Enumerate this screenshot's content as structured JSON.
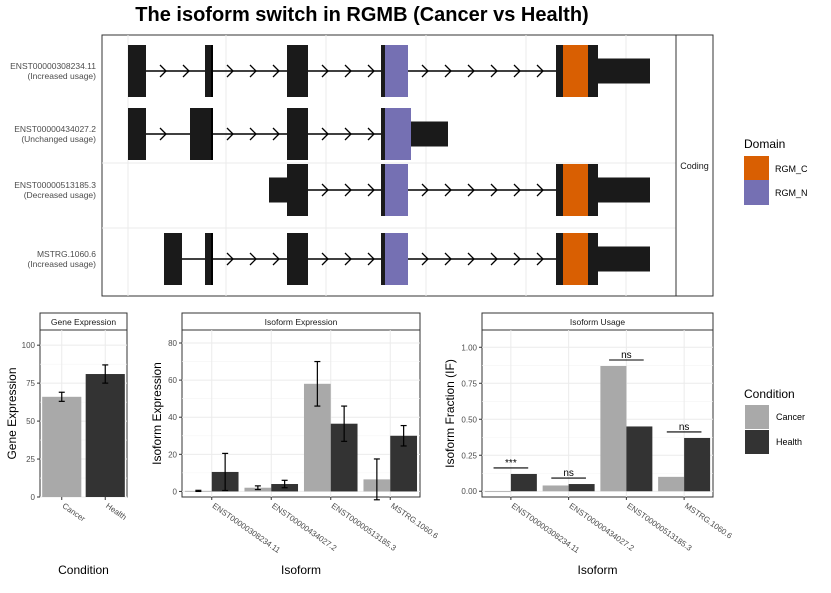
{
  "title": "The isoform switch in RGMB (Cancer vs Health)",
  "colors": {
    "exon": "#1a1a1a",
    "rgm_c": "#d95f02",
    "rgm_n": "#7570b3",
    "cancer": "#a9a9a9",
    "health": "#333333"
  },
  "chart_data": [
    {
      "type": "gene-structure",
      "facet_label": "Coding",
      "transcripts": [
        {
          "id": "ENST00000308234.11",
          "usage": "(Increased usage)",
          "domains": [
            "RGM_N",
            "RGM_C"
          ]
        },
        {
          "id": "ENST00000434027.2",
          "usage": "(Unchanged usage)",
          "domains": [
            "RGM_N"
          ]
        },
        {
          "id": "ENST00000513185.3",
          "usage": "(Decreased usage)",
          "domains": [
            "RGM_N",
            "RGM_C"
          ]
        },
        {
          "id": "MSTRG.1060.6",
          "usage": "(Increased usage)",
          "domains": [
            "RGM_N",
            "RGM_C"
          ]
        }
      ],
      "legend": {
        "title": "Domain",
        "entries": [
          "RGM_C",
          "RGM_N"
        ]
      }
    },
    {
      "type": "bar",
      "title": "Gene Expression",
      "xlabel": "Condition",
      "ylabel": "Gene Expression",
      "categories": [
        "Cancer",
        "Health"
      ],
      "values": [
        66,
        81
      ],
      "errors": [
        3,
        6
      ],
      "ylim": [
        0,
        110
      ],
      "yticks": [
        0,
        25,
        50,
        75,
        100
      ]
    },
    {
      "type": "bar",
      "title": "Isoform Expression",
      "xlabel": "Isoform",
      "ylabel": "Isoform Expression",
      "categories": [
        "ENST00000308234.11",
        "ENST00000434027.2",
        "ENST00000513185.3",
        "MSTRG.1060.6"
      ],
      "series": [
        {
          "name": "Cancer",
          "values": [
            0.3,
            2,
            58,
            6.5
          ],
          "errors": [
            0.3,
            1,
            12,
            11
          ]
        },
        {
          "name": "Health",
          "values": [
            10.5,
            4,
            36.5,
            30
          ],
          "errors": [
            10,
            2,
            9.5,
            5.5
          ]
        }
      ],
      "ylim": [
        -3,
        87
      ],
      "yticks": [
        0,
        20,
        40,
        60,
        80
      ]
    },
    {
      "type": "bar",
      "title": "Isoform Usage",
      "xlabel": "Isoform",
      "ylabel": "Isoform Fraction (IF)",
      "categories": [
        "ENST00000308234.11",
        "ENST00000434027.2",
        "ENST00000513185.3",
        "MSTRG.1060.6"
      ],
      "series": [
        {
          "name": "Cancer",
          "values": [
            0.0,
            0.04,
            0.87,
            0.1
          ]
        },
        {
          "name": "Health",
          "values": [
            0.12,
            0.05,
            0.45,
            0.37
          ]
        }
      ],
      "significance": [
        "***",
        "ns",
        "ns",
        "ns"
      ],
      "ylim": [
        -0.04,
        1.12
      ],
      "yticks": [
        "0.00",
        "0.25",
        "0.50",
        "0.75",
        "1.00"
      ]
    }
  ],
  "condition_legend": {
    "title": "Condition",
    "entries": [
      "Cancer",
      "Health"
    ]
  }
}
